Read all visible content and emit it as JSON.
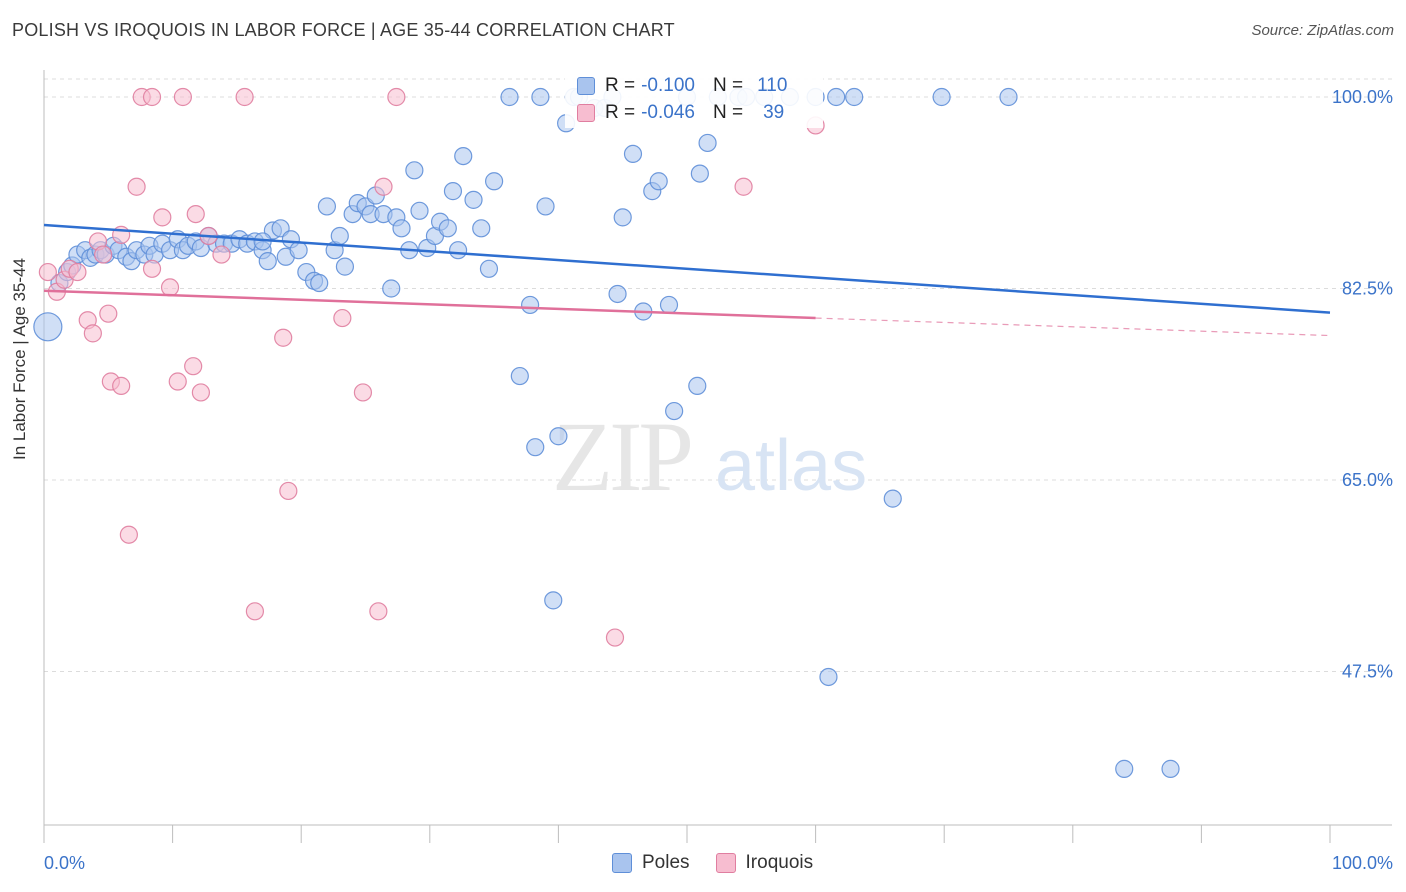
{
  "title": "POLISH VS IROQUOIS IN LABOR FORCE | AGE 35-44 CORRELATION CHART",
  "source": "Source: ZipAtlas.com",
  "watermark": {
    "zip": "ZIP",
    "atlas": "atlas"
  },
  "legend": {
    "rows": [
      {
        "label_r": "R =",
        "r": "-0.100",
        "label_n": "N =",
        "n": "110",
        "color": "#a9c4ee",
        "border": "#5f8fd8"
      },
      {
        "label_r": "R =",
        "r": "-0.046",
        "label_n": "N =",
        "n": "39",
        "color": "#f7bdd0",
        "border": "#e07ea0"
      }
    ]
  },
  "bottom_legend": [
    {
      "name": "Poles",
      "color": "#a9c4ee",
      "border": "#5f8fd8"
    },
    {
      "name": "Iroquois",
      "color": "#f7bdd0",
      "border": "#e07ea0"
    }
  ],
  "chart_data": {
    "type": "scatter",
    "title": "POLISH VS IROQUOIS IN LABOR FORCE | AGE 35-44 CORRELATION CHART",
    "xlabel": "",
    "ylabel": "In Labor Force | Age 35-44",
    "xlim": [
      0,
      100
    ],
    "ylim": [
      30,
      102
    ],
    "x_tick_labels": [
      "0.0%",
      "100.0%"
    ],
    "y_ticks": [
      47.5,
      65.0,
      82.5,
      100.0
    ],
    "y_tick_labels": [
      "47.5%",
      "65.0%",
      "82.5%",
      "100.0%"
    ],
    "grid": true,
    "series": [
      {
        "name": "Poles",
        "color": "#5f8fd8",
        "fill": "#a9c4ee",
        "trend": {
          "x": [
            0,
            100
          ],
          "y": [
            88.3,
            80.3
          ]
        },
        "points": [
          [
            0.3,
            79.0
          ],
          [
            1.2,
            83.0
          ],
          [
            1.8,
            84.0
          ],
          [
            2.2,
            84.6
          ],
          [
            2.6,
            85.6
          ],
          [
            3.2,
            86.0
          ],
          [
            3.6,
            85.3
          ],
          [
            4.0,
            85.6
          ],
          [
            4.4,
            86.0
          ],
          [
            4.8,
            85.6
          ],
          [
            5.4,
            86.4
          ],
          [
            5.8,
            86.0
          ],
          [
            6.4,
            85.4
          ],
          [
            6.8,
            85.0
          ],
          [
            7.2,
            86.0
          ],
          [
            7.8,
            85.6
          ],
          [
            8.2,
            86.4
          ],
          [
            8.6,
            85.6
          ],
          [
            9.2,
            86.6
          ],
          [
            9.8,
            86.0
          ],
          [
            10.4,
            87.0
          ],
          [
            10.8,
            86.0
          ],
          [
            11.2,
            86.4
          ],
          [
            11.8,
            86.8
          ],
          [
            12.2,
            86.2
          ],
          [
            12.8,
            87.3
          ],
          [
            13.4,
            86.6
          ],
          [
            14.0,
            86.6
          ],
          [
            14.6,
            86.6
          ],
          [
            15.2,
            87.0
          ],
          [
            15.8,
            86.6
          ],
          [
            16.4,
            86.8
          ],
          [
            17.0,
            86.0
          ],
          [
            17.4,
            85.0
          ],
          [
            17.8,
            87.8
          ],
          [
            18.4,
            88.0
          ],
          [
            18.8,
            85.4
          ],
          [
            19.2,
            87.0
          ],
          [
            19.8,
            86.0
          ],
          [
            20.4,
            84.0
          ],
          [
            21.0,
            83.2
          ],
          [
            21.4,
            83.0
          ],
          [
            22.0,
            90.0
          ],
          [
            22.6,
            86.0
          ],
          [
            23.0,
            87.3
          ],
          [
            23.4,
            84.5
          ],
          [
            24.0,
            89.3
          ],
          [
            24.4,
            90.3
          ],
          [
            25.0,
            90.0
          ],
          [
            25.4,
            89.3
          ],
          [
            25.8,
            91.0
          ],
          [
            26.4,
            89.3
          ],
          [
            27.0,
            82.5
          ],
          [
            27.4,
            89.0
          ],
          [
            27.8,
            88.0
          ],
          [
            28.4,
            86.0
          ],
          [
            28.8,
            93.3
          ],
          [
            29.2,
            89.6
          ],
          [
            29.8,
            86.2
          ],
          [
            30.4,
            87.3
          ],
          [
            30.8,
            88.6
          ],
          [
            31.4,
            88.0
          ],
          [
            31.8,
            91.4
          ],
          [
            32.2,
            86.0
          ],
          [
            32.6,
            94.6
          ],
          [
            33.4,
            90.6
          ],
          [
            34.0,
            88.0
          ],
          [
            34.6,
            84.3
          ],
          [
            35.0,
            92.3
          ],
          [
            36.2,
            100.0
          ],
          [
            37.0,
            74.5
          ],
          [
            37.8,
            81.0
          ],
          [
            38.2,
            68.0
          ],
          [
            38.6,
            100.0
          ],
          [
            39.0,
            90.0
          ],
          [
            39.6,
            54.0
          ],
          [
            40.0,
            69.0
          ],
          [
            40.6,
            97.6
          ],
          [
            41.2,
            100.0
          ],
          [
            41.6,
            100.0
          ],
          [
            42.8,
            99.0
          ],
          [
            43.6,
            99.0
          ],
          [
            44.2,
            100.0
          ],
          [
            44.6,
            82.0
          ],
          [
            45.0,
            89.0
          ],
          [
            45.8,
            94.8
          ],
          [
            46.6,
            80.4
          ],
          [
            47.3,
            91.4
          ],
          [
            47.8,
            92.3
          ],
          [
            48.6,
            81.0
          ],
          [
            49.0,
            71.3
          ],
          [
            50.0,
            100.0
          ],
          [
            50.8,
            73.6
          ],
          [
            51.0,
            93.0
          ],
          [
            51.6,
            95.8
          ],
          [
            52.4,
            100.0
          ],
          [
            54.0,
            100.0
          ],
          [
            54.6,
            100.0
          ],
          [
            56.0,
            100.0
          ],
          [
            58.0,
            100.0
          ],
          [
            60.0,
            100.0
          ],
          [
            61.0,
            47.0
          ],
          [
            61.6,
            100.0
          ],
          [
            63.0,
            100.0
          ],
          [
            66.0,
            63.3
          ],
          [
            69.8,
            100.0
          ],
          [
            75.0,
            100.0
          ],
          [
            84.0,
            38.6
          ],
          [
            87.6,
            38.6
          ],
          [
            17.0,
            86.8
          ]
        ]
      },
      {
        "name": "Iroquois",
        "color": "#e07ea0",
        "fill": "#f7bdd0",
        "trend": {
          "x": [
            0,
            60
          ],
          "y": [
            82.3,
            79.8
          ]
        },
        "trend_dashed": {
          "x": [
            60,
            100
          ],
          "y": [
            79.8,
            78.2
          ]
        },
        "points": [
          [
            0.3,
            84.0
          ],
          [
            1.0,
            82.2
          ],
          [
            1.6,
            83.3
          ],
          [
            2.0,
            84.3
          ],
          [
            2.6,
            84.0
          ],
          [
            3.4,
            79.6
          ],
          [
            3.8,
            78.4
          ],
          [
            4.2,
            86.8
          ],
          [
            4.6,
            85.6
          ],
          [
            5.0,
            80.2
          ],
          [
            5.2,
            74.0
          ],
          [
            6.0,
            73.6
          ],
          [
            6.0,
            87.4
          ],
          [
            6.6,
            60.0
          ],
          [
            7.2,
            91.8
          ],
          [
            7.6,
            100.0
          ],
          [
            8.4,
            100.0
          ],
          [
            8.4,
            84.3
          ],
          [
            9.2,
            89.0
          ],
          [
            9.8,
            82.6
          ],
          [
            10.4,
            74.0
          ],
          [
            10.8,
            100.0
          ],
          [
            11.6,
            75.4
          ],
          [
            11.8,
            89.3
          ],
          [
            12.2,
            73.0
          ],
          [
            12.8,
            87.3
          ],
          [
            13.8,
            85.6
          ],
          [
            15.6,
            100.0
          ],
          [
            16.4,
            53.0
          ],
          [
            18.6,
            78.0
          ],
          [
            19.0,
            64.0
          ],
          [
            23.2,
            79.8
          ],
          [
            24.8,
            73.0
          ],
          [
            26.0,
            53.0
          ],
          [
            26.4,
            91.8
          ],
          [
            27.4,
            100.0
          ],
          [
            44.4,
            50.6
          ],
          [
            54.4,
            91.8
          ],
          [
            60.0,
            97.4
          ]
        ]
      }
    ]
  }
}
